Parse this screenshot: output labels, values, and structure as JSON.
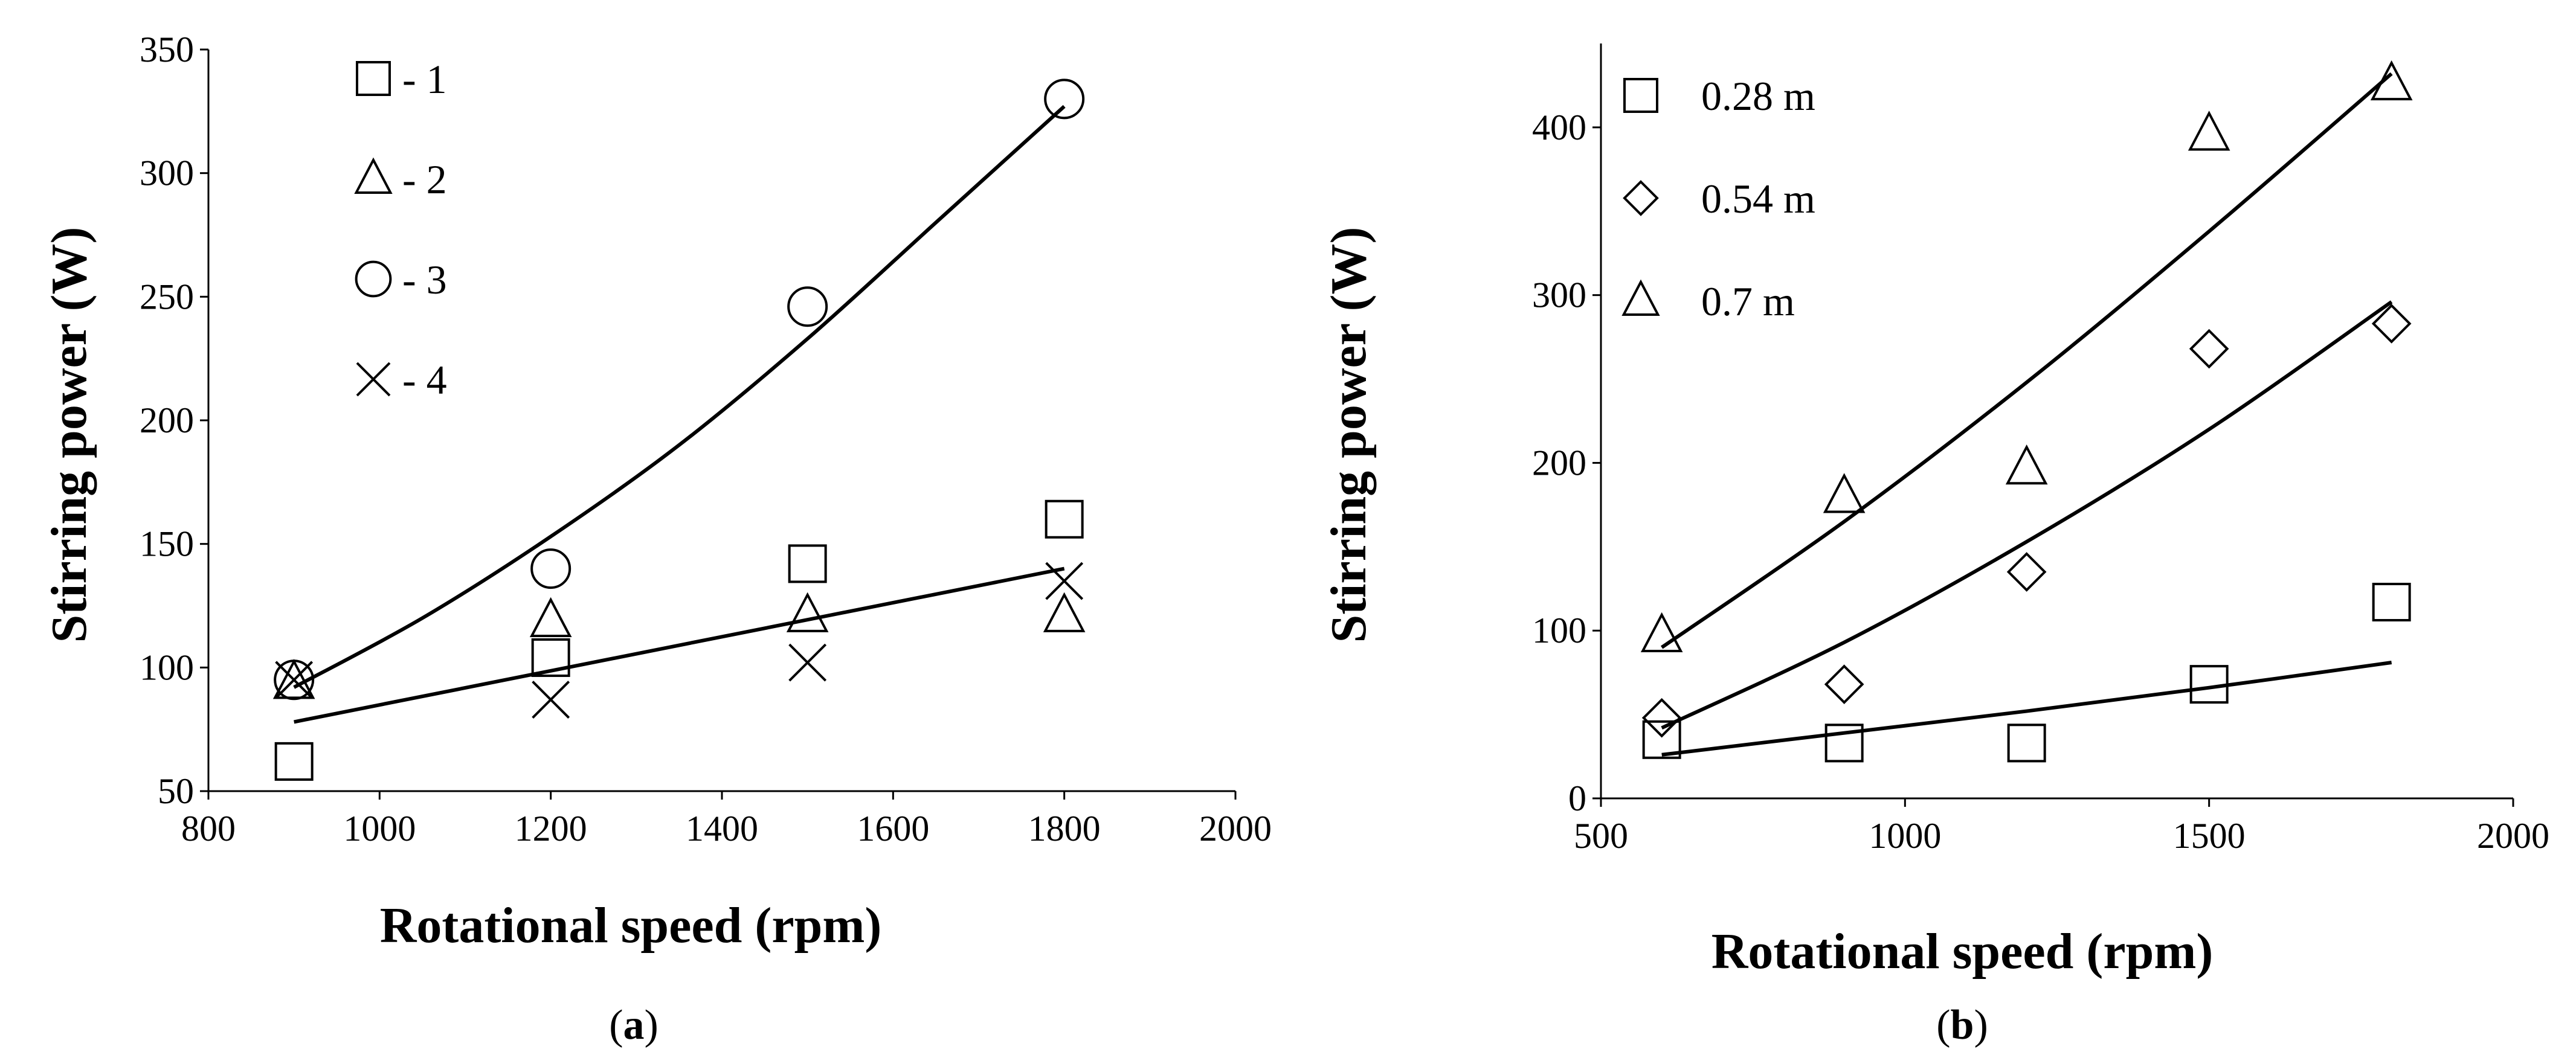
{
  "chart_data": [
    {
      "type": "scatter",
      "panel_label": "a",
      "xlabel": "Rotational speed  (rpm)",
      "ylabel": "Stirring power (W)",
      "xlim": [
        800,
        2000
      ],
      "ylim": [
        50,
        350
      ],
      "xticks": [
        "800",
        "1000",
        "1200",
        "1400",
        "1600",
        "1800",
        "2000"
      ],
      "yticks": [
        "50",
        "100",
        "150",
        "200",
        "250",
        "300",
        "350"
      ],
      "grid": false,
      "legend_position": "top-left",
      "series": [
        {
          "name": "- 1",
          "marker": "square",
          "x": [
            900,
            1200,
            1500,
            1800
          ],
          "y": [
            62,
            104,
            142,
            160
          ]
        },
        {
          "name": "- 2",
          "marker": "triangle",
          "x": [
            900,
            1200,
            1500,
            1800
          ],
          "y": [
            94,
            119,
            121,
            121
          ]
        },
        {
          "name": "- 3",
          "marker": "circle",
          "x": [
            900,
            1200,
            1500,
            1800
          ],
          "y": [
            95,
            140,
            246,
            330
          ]
        },
        {
          "name": "- 4",
          "marker": "cross",
          "x": [
            900,
            1200,
            1500,
            1800
          ],
          "y": [
            95,
            87,
            102,
            135
          ]
        }
      ],
      "trendlines": [
        {
          "name": "curve 3",
          "x": [
            900,
            1050,
            1200,
            1350,
            1500,
            1650,
            1800
          ],
          "y": [
            92,
            120,
            153,
            190,
            233,
            280,
            327
          ]
        },
        {
          "name": "linear 1/2/4",
          "x": [
            900,
            1800
          ],
          "y": [
            78,
            140
          ]
        }
      ]
    },
    {
      "type": "scatter",
      "panel_label": "b",
      "xlabel": "Rotational speed  (rpm)",
      "ylabel": "Stirring power (W)",
      "xlim": [
        500,
        2000
      ],
      "ylim": [
        0,
        450
      ],
      "xticks": [
        "500",
        "1000",
        "1500",
        "2000"
      ],
      "yticks": [
        "0",
        "100",
        "200",
        "300",
        "400"
      ],
      "grid": false,
      "legend_position": "top-left",
      "series": [
        {
          "name": "0.28 m",
          "marker": "square",
          "x": [
            600,
            900,
            1200,
            1500,
            1800
          ],
          "y": [
            35,
            33,
            33,
            68,
            117
          ]
        },
        {
          "name": "0.54 m",
          "marker": "diamond",
          "x": [
            600,
            900,
            1200,
            1500,
            1800
          ],
          "y": [
            48,
            68,
            135,
            268,
            283
          ]
        },
        {
          "name": "0.7 m",
          "marker": "triangle",
          "x": [
            600,
            900,
            1200,
            1500,
            1800
          ],
          "y": [
            97,
            180,
            197,
            396,
            426
          ]
        }
      ],
      "trendlines": [
        {
          "name": "0.28 m fit",
          "x": [
            600,
            900,
            1200,
            1500,
            1800
          ],
          "y": [
            26,
            39,
            52,
            66,
            81
          ]
        },
        {
          "name": "0.54 m fit",
          "x": [
            600,
            900,
            1200,
            1500,
            1800
          ],
          "y": [
            42,
            93,
            153,
            220,
            296
          ]
        },
        {
          "name": "0.7 m fit",
          "x": [
            600,
            900,
            1200,
            1500,
            1800
          ],
          "y": [
            90,
            165,
            248,
            338,
            432
          ]
        }
      ]
    }
  ]
}
